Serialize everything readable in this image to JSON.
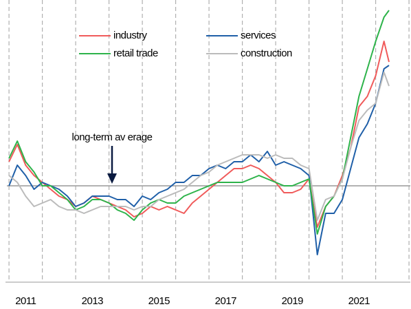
{
  "chart_data": {
    "type": "line",
    "x": [
      2011.0,
      2011.25,
      2011.5,
      2011.75,
      2012.0,
      2012.25,
      2012.5,
      2012.75,
      2013.0,
      2013.25,
      2013.5,
      2013.75,
      2014.0,
      2014.25,
      2014.5,
      2014.75,
      2015.0,
      2015.25,
      2015.5,
      2015.75,
      2016.0,
      2016.25,
      2016.5,
      2016.75,
      2017.0,
      2017.25,
      2017.5,
      2017.75,
      2018.0,
      2018.25,
      2018.5,
      2018.75,
      2019.0,
      2019.25,
      2019.5,
      2019.75,
      2020.0,
      2020.25,
      2020.5,
      2020.75,
      2021.0,
      2021.25,
      2021.5,
      2021.75,
      2022.0,
      2022.25,
      2022.4
    ],
    "series": [
      {
        "name": "industry",
        "color": "#f05a5a",
        "values": [
          7,
          12,
          6,
          3,
          1,
          -1,
          -3,
          -4,
          -6,
          -5,
          -3,
          -4,
          -5,
          -6,
          -7,
          -9,
          -8,
          -6,
          -7,
          -6,
          -7,
          -8,
          -5,
          -3,
          -1,
          1,
          3,
          5,
          5,
          6,
          5,
          3,
          1,
          -2,
          -2,
          -1,
          2,
          -12,
          -6,
          -3,
          3,
          11,
          23,
          26,
          32,
          42,
          36
        ]
      },
      {
        "name": "services",
        "color": "#1f5fa8",
        "values": [
          0,
          6,
          3,
          -1,
          1,
          0,
          -1,
          -3,
          -6,
          -5,
          -3,
          -3,
          -3,
          -4,
          -4,
          -6,
          -3,
          -4,
          -2,
          -1,
          1,
          1,
          3,
          3,
          5,
          6,
          5,
          7,
          7,
          9,
          7,
          10,
          6,
          7,
          6,
          5,
          3,
          -20,
          -8,
          -8,
          -4,
          5,
          14,
          18,
          24,
          34,
          35
        ]
      },
      {
        "name": "retail trade",
        "color": "#2db34a",
        "values": [
          8,
          13,
          7,
          4,
          0,
          0,
          -2,
          -4,
          -7,
          -6,
          -4,
          -4,
          -5,
          -7,
          -8,
          -10,
          -7,
          -5,
          -4,
          -5,
          -5,
          -3,
          -2,
          -1,
          0,
          1,
          1,
          1,
          1,
          2,
          3,
          2,
          1,
          0,
          0,
          1,
          2,
          -14,
          -6,
          -3,
          2,
          14,
          26,
          34,
          42,
          49,
          51
        ]
      },
      {
        "name": "construction",
        "color": "#bbbbbb",
        "values": [
          3,
          1,
          -3,
          -6,
          -5,
          -4,
          -6,
          -7,
          -7,
          -8,
          -7,
          -6,
          -6,
          -6,
          -6,
          -7,
          -6,
          -6,
          -4,
          -3,
          -2,
          -1,
          1,
          3,
          4,
          6,
          7,
          8,
          9,
          9,
          9,
          8,
          9,
          8,
          8,
          6,
          5,
          -10,
          -4,
          -3,
          2,
          11,
          19,
          22,
          24,
          33,
          29
        ]
      }
    ],
    "average": 0,
    "annotation": "long-term av erage",
    "xlim": [
      2010.73,
      2023.06
    ],
    "ylim": [
      -28,
      52
    ],
    "xgrid": [
      2011,
      2012,
      2013,
      2014,
      2015,
      2016,
      2017,
      2018,
      2019,
      2020,
      2021,
      2022,
      2023
    ],
    "xticks": [
      {
        "value": 2011.5,
        "label": "2011"
      },
      {
        "value": 2013.5,
        "label": "2013"
      },
      {
        "value": 2015.5,
        "label": "2015"
      },
      {
        "value": 2017.5,
        "label": "2017"
      },
      {
        "value": 2019.5,
        "label": "2019"
      },
      {
        "value": 2021.5,
        "label": "2021"
      }
    ]
  }
}
